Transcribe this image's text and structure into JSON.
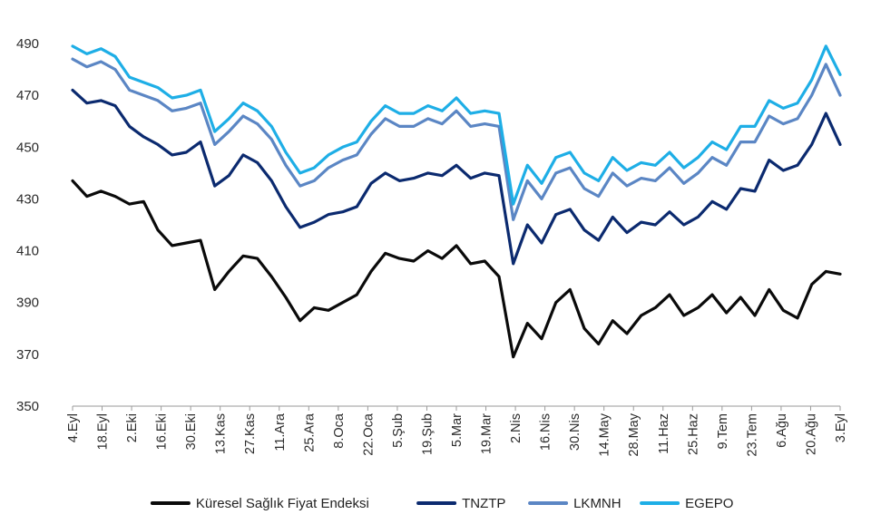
{
  "chart_data": {
    "type": "line",
    "title": "",
    "xlabel": "",
    "ylabel": "",
    "ylim": [
      350,
      490
    ],
    "yticks": [
      350,
      370,
      390,
      410,
      430,
      450,
      470,
      490
    ],
    "grid": false,
    "legend_position": "bottom",
    "x_tick_labels": [
      "4.Eyl",
      "18.Eyl",
      "2.Eki",
      "16.Eki",
      "30.Eki",
      "13.Kas",
      "27.Kas",
      "11.Ara",
      "25.Ara",
      "8.Oca",
      "22.Oca",
      "5.Şub",
      "19.Şub",
      "5.Mar",
      "19.Mar",
      "2.Nis",
      "16.Nis",
      "30.Nis",
      "14.May",
      "28.May",
      "11.Haz",
      "25.Haz",
      "9.Tem",
      "23.Tem",
      "6.Ağu",
      "20.Ağu",
      "3.Eyl"
    ],
    "series": [
      {
        "name": "Küresel Sağlık Fiyat Endeksi",
        "color": "#0a0a0a",
        "values": [
          437,
          431,
          433,
          431,
          428,
          429,
          418,
          412,
          413,
          414,
          395,
          402,
          408,
          407,
          400,
          392,
          383,
          388,
          387,
          390,
          393,
          402,
          409,
          407,
          406,
          410,
          407,
          412,
          405,
          406,
          400,
          369,
          382,
          376,
          390,
          395,
          380,
          374,
          383,
          378,
          385,
          388,
          393,
          385,
          388,
          393,
          386,
          392,
          385,
          395,
          387,
          384,
          397,
          402,
          401
        ]
      },
      {
        "name": "TNZTP",
        "color": "#0b2a6f",
        "values": [
          472,
          467,
          468,
          466,
          458,
          454,
          451,
          447,
          448,
          452,
          435,
          439,
          447,
          444,
          437,
          427,
          419,
          421,
          424,
          425,
          427,
          436,
          440,
          437,
          438,
          440,
          439,
          443,
          438,
          440,
          439,
          405,
          420,
          413,
          424,
          426,
          418,
          414,
          423,
          417,
          421,
          420,
          425,
          420,
          423,
          429,
          426,
          434,
          433,
          445,
          441,
          443,
          451,
          463,
          451
        ]
      },
      {
        "name": "LKMNH",
        "color": "#5b86c4",
        "values": [
          484,
          481,
          483,
          480,
          472,
          470,
          468,
          464,
          465,
          467,
          451,
          456,
          462,
          459,
          453,
          443,
          435,
          437,
          442,
          445,
          447,
          455,
          461,
          458,
          458,
          461,
          459,
          464,
          458,
          459,
          458,
          422,
          437,
          430,
          440,
          442,
          434,
          431,
          440,
          435,
          438,
          437,
          442,
          436,
          440,
          446,
          443,
          452,
          452,
          462,
          459,
          461,
          470,
          482,
          470
        ]
      },
      {
        "name": "EGEPO",
        "color": "#1eaee6",
        "values": [
          489,
          486,
          488,
          485,
          477,
          475,
          473,
          469,
          470,
          472,
          456,
          461,
          467,
          464,
          458,
          448,
          440,
          442,
          447,
          450,
          452,
          460,
          466,
          463,
          463,
          466,
          464,
          469,
          463,
          464,
          463,
          428,
          443,
          436,
          446,
          448,
          440,
          437,
          446,
          441,
          444,
          443,
          448,
          442,
          446,
          452,
          449,
          458,
          458,
          468,
          465,
          467,
          476,
          489,
          478
        ]
      }
    ]
  }
}
